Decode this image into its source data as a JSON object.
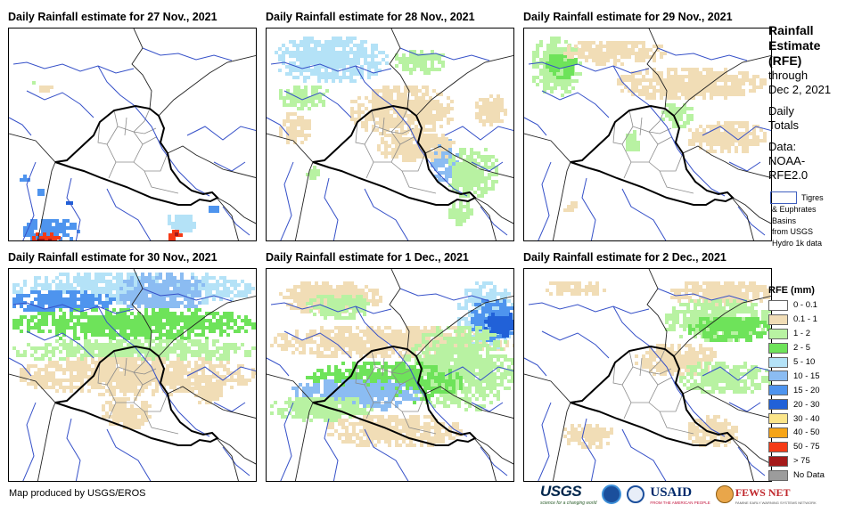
{
  "panels": [
    {
      "title": "Daily Rainfall estimate for 27 Nov., 2021"
    },
    {
      "title": "Daily Rainfall estimate for 28 Nov., 2021"
    },
    {
      "title": "Daily Rainfall estimate for 29 Nov., 2021"
    },
    {
      "title": "Daily Rainfall estimate for 30 Nov., 2021"
    },
    {
      "title": "Daily Rainfall estimate for 1 Dec., 2021"
    },
    {
      "title": "Daily Rainfall estimate for 2 Dec., 2021"
    }
  ],
  "sidebar": {
    "title_line1": "Rainfall",
    "title_line2": "Estimate",
    "title_line3": "(RFE)",
    "through": "through",
    "date": "Dec 2, 2021",
    "daily": "Daily",
    "totals": "Totals",
    "data_label": "Data:",
    "source1": "NOAA-",
    "source2": "RFE2.0",
    "basin_line1": "Tigres",
    "basin_line2": "& Euphrates",
    "basin_line3": "Basins",
    "basin_line4": "from USGS",
    "basin_line5": "Hydro 1k data"
  },
  "legend": {
    "title": "RFE (mm)",
    "items": [
      {
        "label": "0 - 0.1",
        "color": "#ffffff"
      },
      {
        "label": "0.1 - 1",
        "color": "#f1ddb6"
      },
      {
        "label": "1 - 2",
        "color": "#b8f2a2"
      },
      {
        "label": "2 - 5",
        "color": "#6ee35a"
      },
      {
        "label": "5 - 10",
        "color": "#b4e2f7"
      },
      {
        "label": "10 - 15",
        "color": "#8bbcf2"
      },
      {
        "label": "15 - 20",
        "color": "#4e94ee"
      },
      {
        "label": "20 - 30",
        "color": "#2161d8"
      },
      {
        "label": "30 - 40",
        "color": "#fbe58a"
      },
      {
        "label": "40 - 50",
        "color": "#f6a417"
      },
      {
        "label": "50 - 75",
        "color": "#f53a16"
      },
      {
        "label": "> 75",
        "color": "#a51a1a"
      },
      {
        "label": "No Data",
        "color": "#9c9c9c"
      }
    ]
  },
  "credit": "Map produced by USGS/EROS",
  "logos": {
    "usgs": "USGS",
    "usgs_tagline": "science for a changing world",
    "usaid": "USAID",
    "usaid_tagline": "FROM THE AMERICAN PEOPLE",
    "fews": "FEWS NET",
    "fews_tagline": "FAMINE EARLY WARNING SYSTEMS NETWORK"
  },
  "colors": {
    "border": "#000000",
    "province": "#8a8a8a",
    "river": "#3550c8"
  }
}
